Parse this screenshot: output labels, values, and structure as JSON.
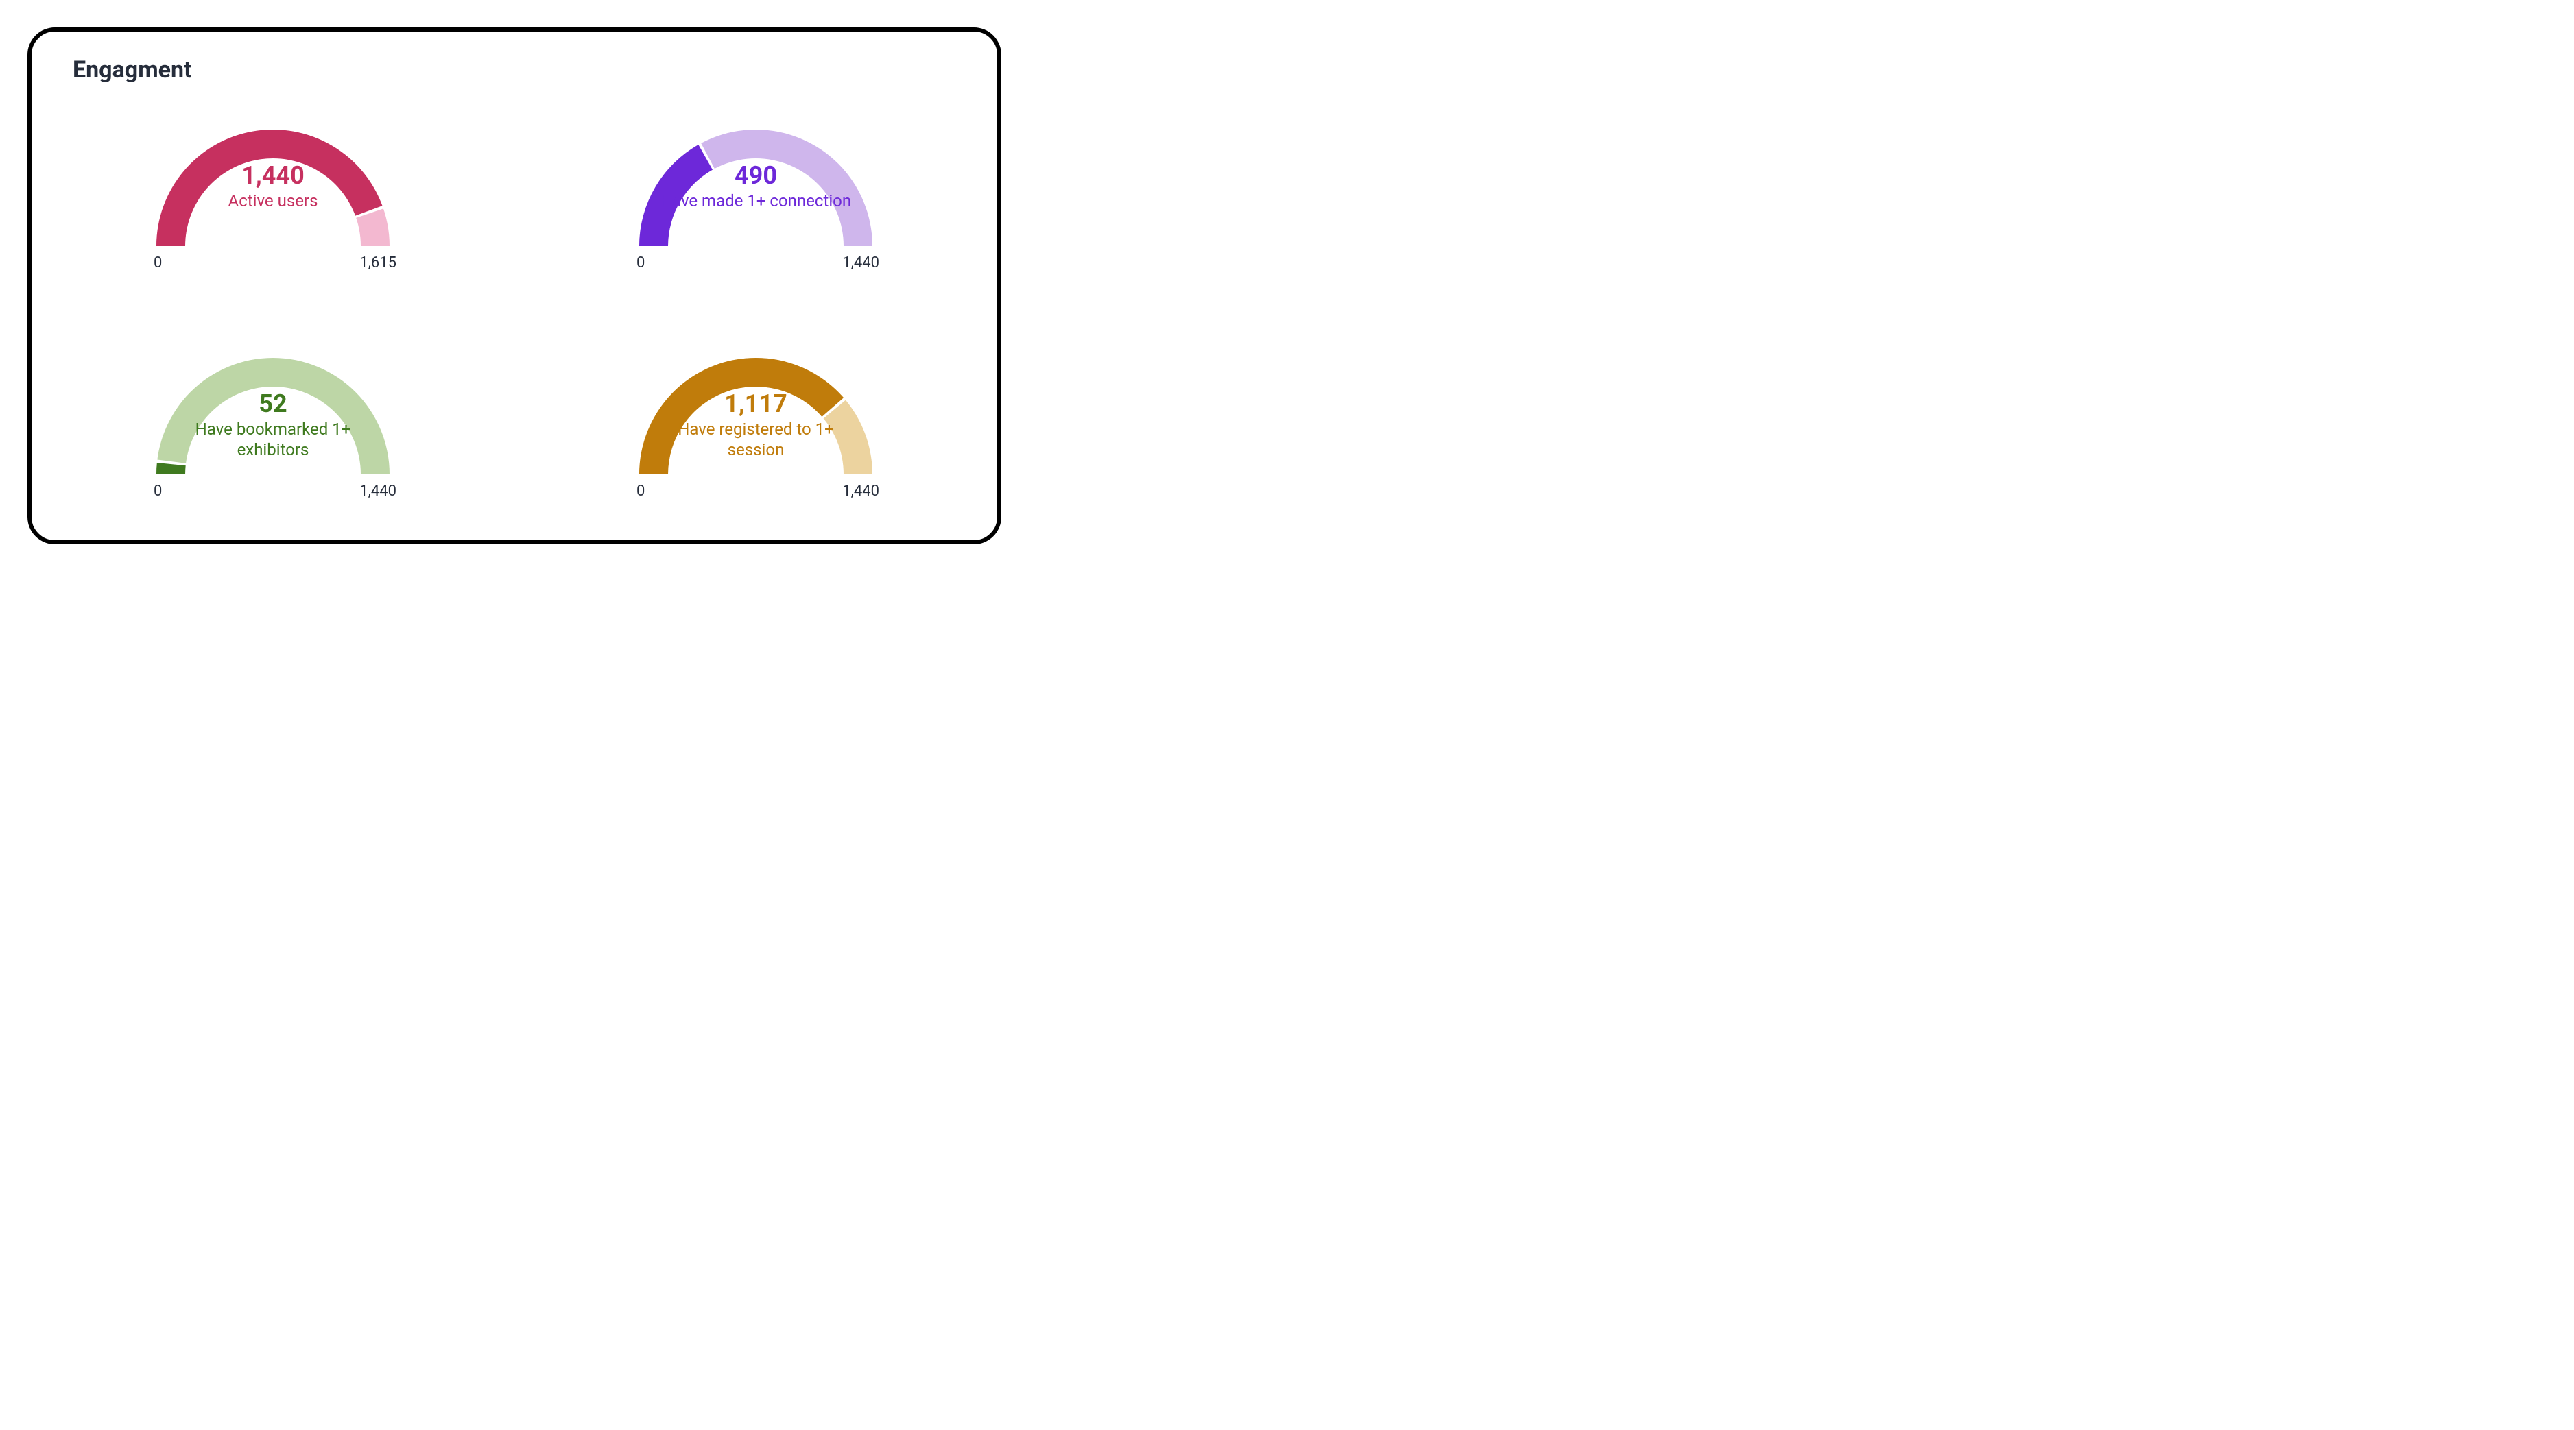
{
  "card": {
    "title": "Engagment",
    "title_color": "#262d3b",
    "title_fontsize": 34,
    "border_color": "#000000",
    "border_width": 6,
    "border_radius": 40,
    "background_color": "#ffffff"
  },
  "gauge_defaults": {
    "type": "gauge",
    "outer_radius": 170,
    "inner_radius": 128,
    "start_angle_deg": 180,
    "end_angle_deg": 0,
    "value_fontsize": 36,
    "label_fontsize": 24,
    "scale_fontsize": 22,
    "scale_color": "#262d3b"
  },
  "gauges": [
    {
      "id": "active-users",
      "value": 1440,
      "value_display": "1,440",
      "label": "Active users",
      "min": 0,
      "min_display": "0",
      "max": 1615,
      "max_display": "1,615",
      "fill_color": "#c6305f",
      "track_color": "#f3b8d0",
      "text_color": "#c6305f"
    },
    {
      "id": "connections",
      "value": 490,
      "value_display": "490",
      "label": "Have made 1+ connection",
      "min": 0,
      "min_display": "0",
      "max": 1440,
      "max_display": "1,440",
      "fill_color": "#6d28d9",
      "track_color": "#cfb6ec",
      "text_color": "#6d28d9"
    },
    {
      "id": "bookmarked",
      "value": 52,
      "value_display": "52",
      "label": "Have bookmarked 1+ exhibitors",
      "min": 0,
      "min_display": "0",
      "max": 1440,
      "max_display": "1,440",
      "fill_color": "#3f7a1f",
      "track_color": "#bdd6a6",
      "text_color": "#3f7a1f"
    },
    {
      "id": "registered",
      "value": 1117,
      "value_display": "1,117",
      "label": "Have registered to 1+ session",
      "min": 0,
      "min_display": "0",
      "max": 1440,
      "max_display": "1,440",
      "fill_color": "#c07c0b",
      "track_color": "#ecd39f",
      "text_color": "#c07c0b"
    }
  ]
}
